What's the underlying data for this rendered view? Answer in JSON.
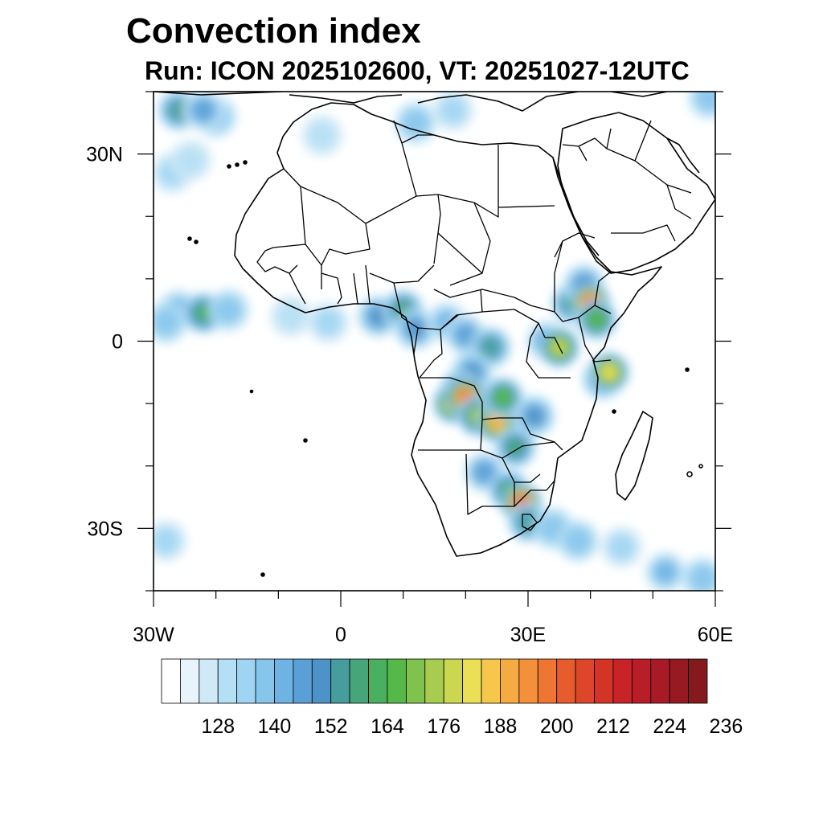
{
  "title": "Convection index",
  "subtitle": "Run: ICON 2025102600,  VT: 20251027-12UTC",
  "map": {
    "lon_range": [
      -30,
      60
    ],
    "lat_range": [
      -40,
      40
    ],
    "lon_ticks": [
      {
        "value": -30,
        "label": "30W"
      },
      {
        "value": 0,
        "label": "0"
      },
      {
        "value": 30,
        "label": "30E"
      },
      {
        "value": 60,
        "label": "60E"
      }
    ],
    "lat_ticks": [
      {
        "value": 30,
        "label": "30N"
      },
      {
        "value": 0,
        "label": "0"
      },
      {
        "value": -30,
        "label": "30S"
      }
    ]
  },
  "colorbar": {
    "colors": [
      "#ffffff",
      "#e8f4fb",
      "#cfe9f7",
      "#b5dff5",
      "#9fd5f3",
      "#86c6ec",
      "#6fb3e4",
      "#5a9fd6",
      "#4d93c8",
      "#479d9d",
      "#46a67a",
      "#48b05e",
      "#57b84a",
      "#80c24e",
      "#a8cc50",
      "#cbd651",
      "#eadf55",
      "#f7c74c",
      "#f6ab42",
      "#f49039",
      "#ef7532",
      "#e65c2c",
      "#dd4629",
      "#d43426",
      "#c82428",
      "#b91d27",
      "#a81a25",
      "#971a22",
      "#851a1e"
    ],
    "tick_labels": [
      "128",
      "140",
      "152",
      "164",
      "176",
      "188",
      "200",
      "212",
      "224",
      "236"
    ]
  },
  "convection_cells": [
    {
      "lon": -20,
      "lat": 36,
      "lvl": 5
    },
    {
      "lon": -26,
      "lat": 37,
      "lvl": 9
    },
    {
      "lon": -22,
      "lat": 37,
      "lvl": 7
    },
    {
      "lon": -27,
      "lat": 27,
      "lvl": 4
    },
    {
      "lon": -24,
      "lat": 29,
      "lvl": 3
    },
    {
      "lon": -26,
      "lat": 5,
      "lvl": 6
    },
    {
      "lon": -22,
      "lat": 4.5,
      "lvl": 11
    },
    {
      "lon": -18,
      "lat": 5,
      "lvl": 5
    },
    {
      "lon": -28,
      "lat": 3,
      "lvl": 5
    },
    {
      "lon": -8,
      "lat": 4,
      "lvl": 3
    },
    {
      "lon": -2,
      "lat": 3,
      "lvl": 4
    },
    {
      "lon": 6,
      "lat": 4,
      "lvl": 8
    },
    {
      "lon": 10,
      "lat": 5,
      "lvl": 10
    },
    {
      "lon": 12,
      "lat": 2,
      "lvl": 8
    },
    {
      "lon": 17,
      "lat": 3,
      "lvl": 6
    },
    {
      "lon": 20,
      "lat": 1,
      "lvl": 7
    },
    {
      "lon": 24,
      "lat": -1,
      "lvl": 9
    },
    {
      "lon": 21,
      "lat": -5,
      "lvl": 8
    },
    {
      "lon": 19,
      "lat": -8,
      "lvl": 12
    },
    {
      "lon": 18,
      "lat": -10,
      "lvl": 16
    },
    {
      "lon": 20,
      "lat": -9,
      "lvl": 20
    },
    {
      "lon": 22,
      "lat": -12,
      "lvl": 14
    },
    {
      "lon": 25,
      "lat": -13,
      "lvl": 18
    },
    {
      "lon": 26,
      "lat": -9,
      "lvl": 12
    },
    {
      "lon": 28,
      "lat": -17,
      "lvl": 10
    },
    {
      "lon": 31,
      "lat": -12,
      "lvl": 8
    },
    {
      "lon": 23,
      "lat": -21,
      "lvl": 7
    },
    {
      "lon": 27,
      "lat": -24,
      "lvl": 11
    },
    {
      "lon": 29,
      "lat": -26,
      "lvl": 22
    },
    {
      "lon": 30,
      "lat": -29,
      "lvl": 9
    },
    {
      "lon": 34,
      "lat": -30,
      "lvl": 5
    },
    {
      "lon": 38,
      "lat": -32,
      "lvl": 5
    },
    {
      "lon": 45,
      "lat": -33,
      "lvl": 4
    },
    {
      "lon": 52,
      "lat": -37,
      "lvl": 6
    },
    {
      "lon": 58,
      "lat": -38,
      "lvl": 5
    },
    {
      "lon": -28,
      "lat": -32,
      "lvl": 4
    },
    {
      "lon": 33,
      "lat": 0,
      "lvl": 7
    },
    {
      "lon": 35,
      "lat": -1,
      "lvl": 15
    },
    {
      "lon": 37,
      "lat": 6,
      "lvl": 9
    },
    {
      "lon": 39,
      "lat": 9,
      "lvl": 8
    },
    {
      "lon": 40,
      "lat": 6,
      "lvl": 22
    },
    {
      "lon": 42,
      "lat": -6,
      "lvl": 10
    },
    {
      "lon": 43,
      "lat": -5,
      "lvl": 16
    },
    {
      "lon": 41,
      "lat": 3.5,
      "lvl": 12
    },
    {
      "lon": 12,
      "lat": 35,
      "lvl": 5
    },
    {
      "lon": 18,
      "lat": 37,
      "lvl": 4
    },
    {
      "lon": -3,
      "lat": 33,
      "lvl": 3
    },
    {
      "lon": 59,
      "lat": 39,
      "lvl": 5
    }
  ]
}
